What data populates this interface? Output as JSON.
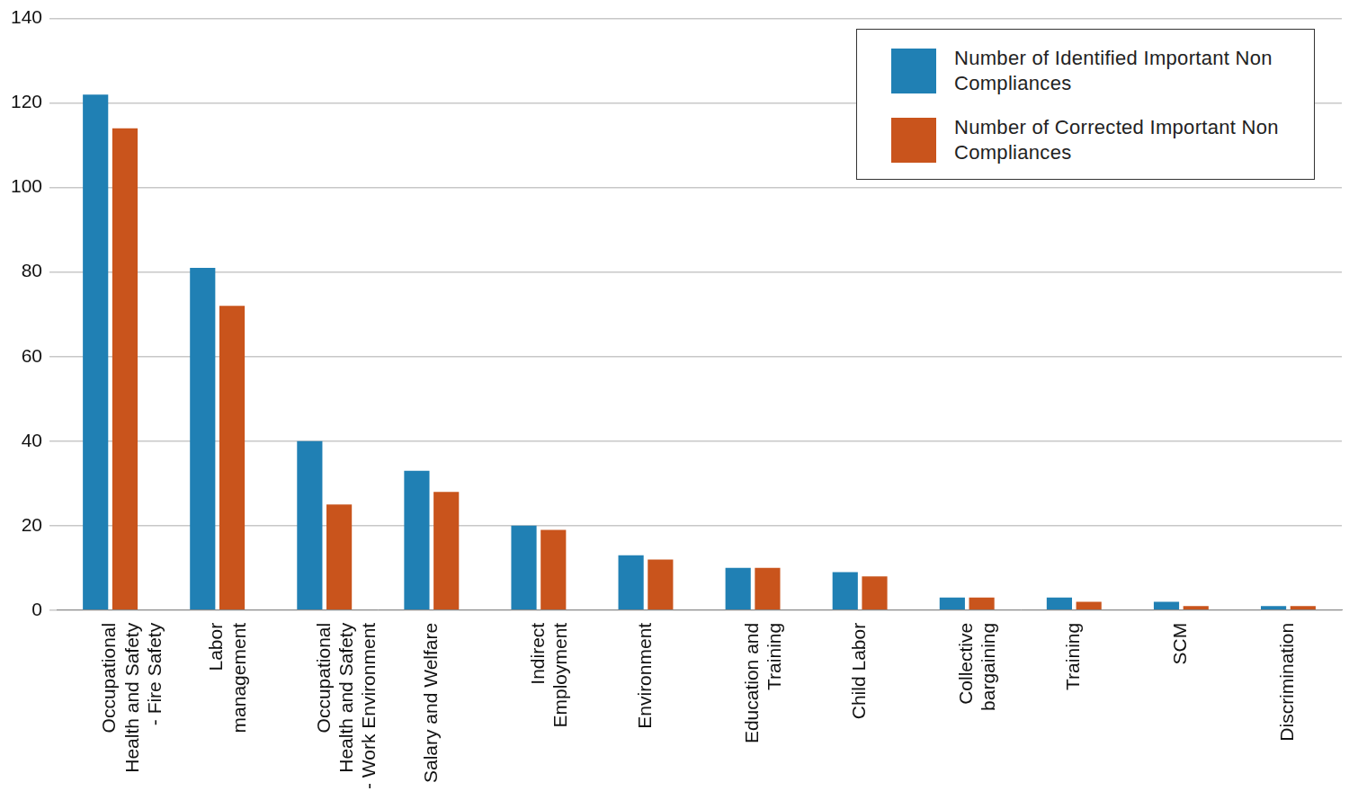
{
  "chart_data": {
    "type": "bar",
    "categories": [
      [
        "Occupational",
        "Health and Safety",
        "- Fire Safety"
      ],
      [
        "Labor",
        "management"
      ],
      [
        "Occupational",
        "Health and Safety",
        "- Work Environment"
      ],
      [
        "Salary and Welfare"
      ],
      [
        "Indirect",
        "Employment"
      ],
      [
        "Environment"
      ],
      [
        "Education and",
        "Training"
      ],
      [
        "Child Labor"
      ],
      [
        "Collective",
        "bargaining"
      ],
      [
        "Training"
      ],
      [
        "SCM"
      ],
      [
        "Discrimination"
      ]
    ],
    "series": [
      {
        "name": "Number of Identified Important Non Compliances",
        "color": "#2080b4",
        "values": [
          122,
          81,
          40,
          33,
          20,
          13,
          10,
          9,
          3,
          3,
          2,
          1
        ]
      },
      {
        "name": "Number of Corrected Important Non Compliances",
        "color": "#c9541c",
        "values": [
          114,
          72,
          25,
          28,
          19,
          12,
          10,
          8,
          3,
          2,
          1,
          1
        ]
      }
    ],
    "ylim": [
      0,
      140
    ],
    "yticks": [
      0,
      20,
      40,
      60,
      80,
      100,
      120,
      140
    ],
    "grid": true,
    "legend": "upper right"
  }
}
